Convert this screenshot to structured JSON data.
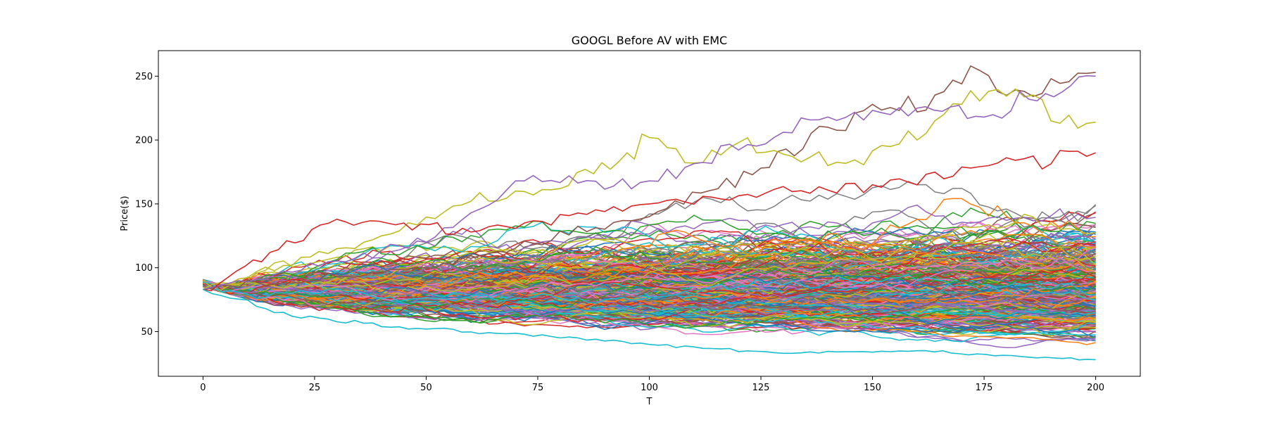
{
  "chart_data": {
    "type": "line",
    "title": "GOOGL Before AV with EMC",
    "xlabel": "T",
    "ylabel": "Price($)",
    "xlim": [
      -10,
      210
    ],
    "ylim": [
      15,
      270
    ],
    "x_ticks": [
      0,
      25,
      50,
      75,
      100,
      125,
      150,
      175,
      200
    ],
    "y_ticks": [
      50,
      100,
      150,
      200,
      250
    ],
    "grid": false,
    "legend": "none",
    "x": {
      "start": 0,
      "end": 200,
      "step": 2
    },
    "initial_price": 83,
    "series_count": 400,
    "envelope": {
      "t": [
        0,
        25,
        50,
        75,
        100,
        125,
        150,
        175,
        200
      ],
      "upper": [
        83,
        125,
        152,
        168,
        205,
        198,
        240,
        260,
        255
      ],
      "lower": [
        83,
        58,
        50,
        45,
        40,
        34,
        32,
        30,
        27
      ]
    },
    "highlighted_series": [
      {
        "color": "#8c564b",
        "values": [
          {
            "x": 0,
            "y": 83
          },
          {
            "x": 50,
            "y": 100
          },
          {
            "x": 100,
            "y": 140
          },
          {
            "x": 125,
            "y": 178
          },
          {
            "x": 140,
            "y": 210
          },
          {
            "x": 150,
            "y": 228
          },
          {
            "x": 160,
            "y": 222
          },
          {
            "x": 172,
            "y": 258
          },
          {
            "x": 180,
            "y": 235
          },
          {
            "x": 190,
            "y": 248
          },
          {
            "x": 200,
            "y": 253
          }
        ]
      },
      {
        "color": "#bcbd22",
        "values": [
          {
            "x": 0,
            "y": 83
          },
          {
            "x": 40,
            "y": 125
          },
          {
            "x": 60,
            "y": 152
          },
          {
            "x": 80,
            "y": 162
          },
          {
            "x": 95,
            "y": 190
          },
          {
            "x": 100,
            "y": 202
          },
          {
            "x": 110,
            "y": 182
          },
          {
            "x": 120,
            "y": 198
          },
          {
            "x": 140,
            "y": 180
          },
          {
            "x": 160,
            "y": 200
          },
          {
            "x": 170,
            "y": 228
          },
          {
            "x": 182,
            "y": 240
          },
          {
            "x": 190,
            "y": 215
          },
          {
            "x": 200,
            "y": 214
          }
        ]
      },
      {
        "color": "#9467bd",
        "values": [
          {
            "x": 0,
            "y": 83
          },
          {
            "x": 50,
            "y": 120
          },
          {
            "x": 72,
            "y": 168
          },
          {
            "x": 100,
            "y": 168
          },
          {
            "x": 140,
            "y": 218
          },
          {
            "x": 160,
            "y": 225
          },
          {
            "x": 175,
            "y": 218
          },
          {
            "x": 185,
            "y": 232
          },
          {
            "x": 200,
            "y": 250
          }
        ]
      },
      {
        "color": "#d62728",
        "values": [
          {
            "x": 0,
            "y": 83
          },
          {
            "x": 15,
            "y": 112
          },
          {
            "x": 30,
            "y": 138
          },
          {
            "x": 45,
            "y": 135
          },
          {
            "x": 60,
            "y": 128
          },
          {
            "x": 100,
            "y": 150
          },
          {
            "x": 150,
            "y": 165
          },
          {
            "x": 200,
            "y": 190
          }
        ]
      },
      {
        "color": "#17becf",
        "values": [
          {
            "x": 0,
            "y": 83
          },
          {
            "x": 20,
            "y": 62
          },
          {
            "x": 50,
            "y": 52
          },
          {
            "x": 80,
            "y": 45
          },
          {
            "x": 110,
            "y": 38
          },
          {
            "x": 130,
            "y": 33
          },
          {
            "x": 160,
            "y": 35
          },
          {
            "x": 185,
            "y": 30
          },
          {
            "x": 200,
            "y": 28
          }
        ]
      }
    ],
    "series_colors": [
      "#1f77b4",
      "#ff7f0e",
      "#2ca02c",
      "#d62728",
      "#9467bd",
      "#8c564b",
      "#e377c2",
      "#7f7f7f",
      "#bcbd22",
      "#17becf"
    ]
  }
}
